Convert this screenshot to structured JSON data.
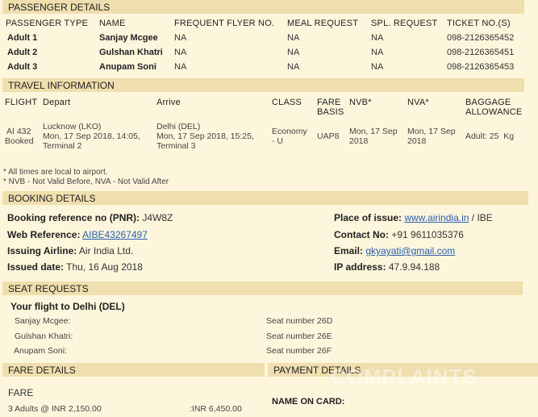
{
  "passenger": {
    "title": "PASSENGER DETAILS",
    "headers": [
      "PASSENGER TYPE",
      "NAME",
      "FREQUENT FLYER NO.",
      "MEAL REQUEST",
      "SPL. REQUEST",
      "TICKET NO.(S)"
    ],
    "rows": [
      [
        "Adult 1",
        "Sanjay Mcgee",
        "NA",
        "NA",
        "NA",
        "098-2126365452"
      ],
      [
        "Adult 2",
        "Gulshan Khatri",
        "NA",
        "NA",
        "NA",
        "098-2126365451"
      ],
      [
        "Adult 3",
        "Anupam Soni",
        "NA",
        "NA",
        "NA",
        "098-2126365453"
      ]
    ]
  },
  "travel": {
    "title": "TRAVEL INFORMATION",
    "headers": [
      "FLIGHT",
      "Depart",
      "Arrive",
      "CLASS",
      "FARE BASIS",
      "NVB*",
      "NVA*",
      "BAGGAGE ALLOWANCE"
    ],
    "row": {
      "flight": "AI 432",
      "status": "Booked",
      "depart_city": "Lucknow (LKO)",
      "depart_time": "Mon, 17 Sep 2018, 14:05,",
      "depart_terminal": "Terminal 2",
      "arrive_city": "Delhi (DEL)",
      "arrive_time": "Mon, 17 Sep 2018, 15:25,",
      "arrive_terminal": "Terminal 3",
      "class_1": "Economy",
      "class_2": "- U",
      "fare_basis": "UAP8",
      "nvb_1": "Mon, 17 Sep",
      "nvb_2": "2018",
      "nva_1": "Mon, 17 Sep",
      "nva_2": "2018",
      "baggage": "Adult: 25  Kg"
    },
    "notes": [
      "* All times are local to airport.",
      "* NVB - Not Valid Before, NVA - Not Valid After"
    ]
  },
  "booking": {
    "title": "BOOKING DETAILS",
    "pnr_label": "Booking reference no (PNR):",
    "pnr": "J4W8Z",
    "web_label": "Web Reference:",
    "web": "AIBE43267497",
    "airline_label": "Issuing Airline:",
    "airline": "Air India Ltd.",
    "issued_label": "Issued date:",
    "issued": "Thu, 16 Aug 2018",
    "place_label": "Place of issue:",
    "place_link": "www.airindia.in",
    "place_suffix": "/ IBE",
    "contact_label": "Contact No:",
    "contact": "+91 9611035376",
    "email_label": "Email:",
    "email": "gkyayati@gmail.com",
    "ip_label": "IP address:",
    "ip": "47.9.94.188"
  },
  "seats": {
    "title": "SEAT REQUESTS",
    "flight": "Your flight to Delhi (DEL)",
    "rows": [
      {
        "name": "Sanjay Mcgee:",
        "seat": "Seat number 26D"
      },
      {
        "name": "Gulshan Khatri:",
        "seat": "Seat number 26E"
      },
      {
        "name": "Anupam Soni:",
        "seat": "Seat number 26F"
      }
    ]
  },
  "fare": {
    "title": "FARE DETAILS",
    "label": "FARE",
    "line": "3 Adults @ INR 2,150.00",
    "amount": ":INR 6,450.00"
  },
  "payment": {
    "title": "PAYMENT DETAILS",
    "name_on_card": "NAME ON CARD:"
  },
  "watermark": "COMPLAINTS BOARD",
  "colors": {
    "background": "#fdf6dc",
    "section_bar": "#efdfae",
    "link": "#2a5db0"
  }
}
